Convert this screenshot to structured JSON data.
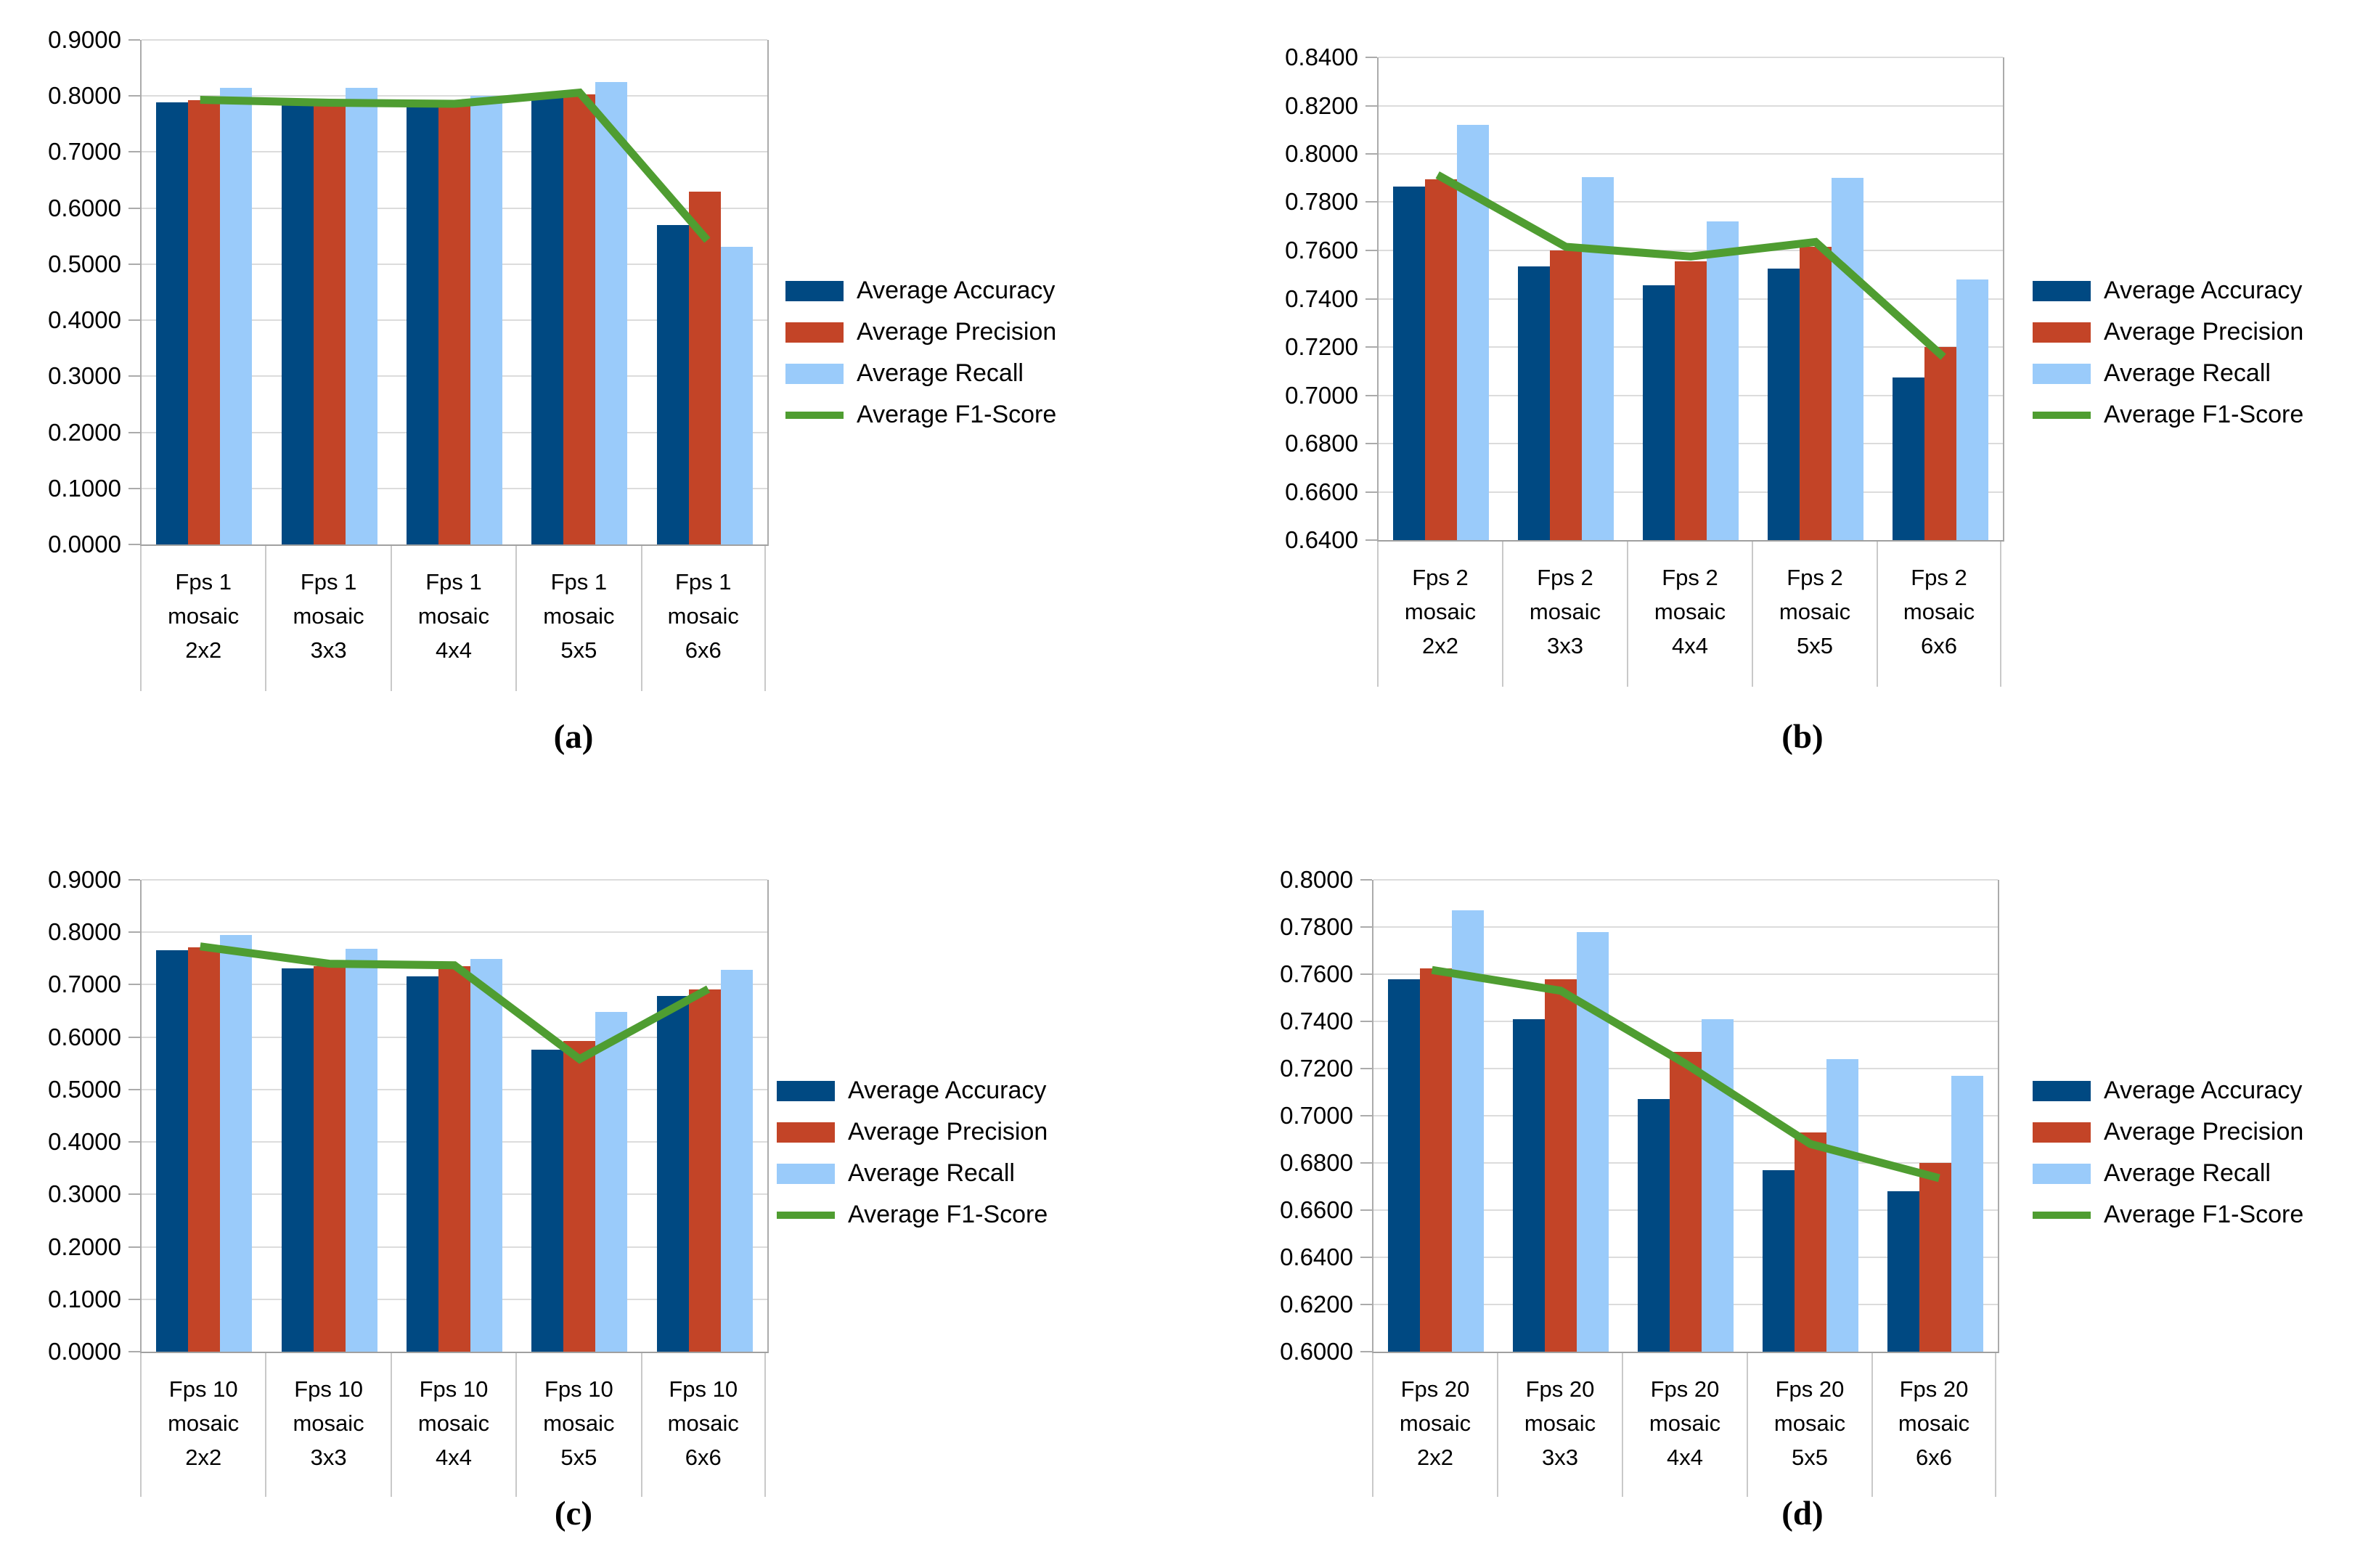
{
  "colors": {
    "accuracy": "#004982",
    "precision": "#c34427",
    "recall": "#9acbfa",
    "f1": "#4f9d31",
    "gridline": "#dcdcdc",
    "axis": "#ababab"
  },
  "legend": {
    "items": [
      {
        "key": "accuracy",
        "label": "Average Accuracy",
        "swatch": "bar"
      },
      {
        "key": "precision",
        "label": "Average Precision",
        "swatch": "bar"
      },
      {
        "key": "recall",
        "label": "Average Recall",
        "swatch": "bar"
      },
      {
        "key": "f1",
        "label": "Average F1-Score",
        "swatch": "line"
      }
    ]
  },
  "chart_data": [
    {
      "id": "a",
      "caption": "(a)",
      "type": "bar",
      "line_series": "Average F1-Score",
      "categories": [
        [
          "Fps 1",
          "mosaic",
          "2x2"
        ],
        [
          "Fps 1",
          "mosaic",
          "3x3"
        ],
        [
          "Fps 1",
          "mosaic",
          "4x4"
        ],
        [
          "Fps 1",
          "mosaic",
          "5x5"
        ],
        [
          "Fps 1",
          "mosaic",
          "6x6"
        ]
      ],
      "series": [
        {
          "name": "Average Accuracy",
          "type": "bar",
          "color_key": "accuracy",
          "values": [
            0.789,
            0.784,
            0.781,
            0.796,
            0.57
          ]
        },
        {
          "name": "Average Precision",
          "type": "bar",
          "color_key": "precision",
          "values": [
            0.792,
            0.784,
            0.783,
            0.803,
            0.63
          ]
        },
        {
          "name": "Average Recall",
          "type": "bar",
          "color_key": "recall",
          "values": [
            0.815,
            0.814,
            0.8,
            0.825,
            0.531
          ]
        },
        {
          "name": "Average F1-Score",
          "type": "line",
          "color_key": "f1",
          "values": [
            0.793,
            0.788,
            0.786,
            0.806,
            0.548
          ]
        }
      ],
      "ylim": [
        0.0,
        0.9
      ],
      "ytick_step": 0.1,
      "yticks": [
        "0.9000",
        "0.8000",
        "0.7000",
        "0.6000",
        "0.5000",
        "0.4000",
        "0.3000",
        "0.2000",
        "0.1000",
        "0.0000"
      ],
      "grid": true,
      "legend_position": "right"
    },
    {
      "id": "b",
      "caption": "(b)",
      "type": "bar",
      "line_series": "Average F1-Score",
      "categories": [
        [
          "Fps 2",
          "mosaic",
          "2x2"
        ],
        [
          "Fps 2",
          "mosaic",
          "3x3"
        ],
        [
          "Fps 2",
          "mosaic",
          "4x4"
        ],
        [
          "Fps 2",
          "mosaic",
          "5x5"
        ],
        [
          "Fps 2",
          "mosaic",
          "6x6"
        ]
      ],
      "series": [
        {
          "name": "Average Accuracy",
          "type": "bar",
          "color_key": "accuracy",
          "values": [
            0.7865,
            0.7535,
            0.7455,
            0.7525,
            0.7075
          ]
        },
        {
          "name": "Average Precision",
          "type": "bar",
          "color_key": "precision",
          "values": [
            0.7895,
            0.76,
            0.7555,
            0.7615,
            0.72
          ]
        },
        {
          "name": "Average Recall",
          "type": "bar",
          "color_key": "recall",
          "values": [
            0.812,
            0.7905,
            0.772,
            0.79,
            0.748
          ]
        },
        {
          "name": "Average F1-Score",
          "type": "line",
          "color_key": "f1",
          "values": [
            0.7905,
            0.7615,
            0.7575,
            0.7635,
            0.717
          ]
        }
      ],
      "ylim": [
        0.64,
        0.84
      ],
      "ytick_step": 0.02,
      "yticks": [
        "0.8400",
        "0.8200",
        "0.8000",
        "0.7800",
        "0.7600",
        "0.7400",
        "0.7200",
        "0.7000",
        "0.6800",
        "0.6600",
        "0.6400"
      ],
      "grid": true,
      "legend_position": "right"
    },
    {
      "id": "c",
      "caption": "(c)",
      "type": "bar",
      "line_series": "Average F1-Score",
      "categories": [
        [
          "Fps 10",
          "mosaic",
          "2x2"
        ],
        [
          "Fps 10",
          "mosaic",
          "3x3"
        ],
        [
          "Fps 10",
          "mosaic",
          "4x4"
        ],
        [
          "Fps 10",
          "mosaic",
          "5x5"
        ],
        [
          "Fps 10",
          "mosaic",
          "6x6"
        ]
      ],
      "series": [
        {
          "name": "Average Accuracy",
          "type": "bar",
          "color_key": "accuracy",
          "values": [
            0.766,
            0.731,
            0.716,
            0.576,
            0.679
          ]
        },
        {
          "name": "Average Precision",
          "type": "bar",
          "color_key": "precision",
          "values": [
            0.771,
            0.735,
            0.735,
            0.592,
            0.691
          ]
        },
        {
          "name": "Average Recall",
          "type": "bar",
          "color_key": "recall",
          "values": [
            0.795,
            0.769,
            0.749,
            0.648,
            0.728
          ]
        },
        {
          "name": "Average F1-Score",
          "type": "line",
          "color_key": "f1",
          "values": [
            0.772,
            0.74,
            0.737,
            0.558,
            0.688
          ]
        }
      ],
      "ylim": [
        0.0,
        0.9
      ],
      "ytick_step": 0.1,
      "yticks": [
        "0.9000",
        "0.8000",
        "0.7000",
        "0.6000",
        "0.5000",
        "0.4000",
        "0.3000",
        "0.2000",
        "0.1000",
        "0.0000"
      ],
      "grid": true,
      "legend_position": "right"
    },
    {
      "id": "d",
      "caption": "(d)",
      "type": "bar",
      "line_series": "Average F1-Score",
      "categories": [
        [
          "Fps 20",
          "mosaic",
          "2x2"
        ],
        [
          "Fps 20",
          "mosaic",
          "3x3"
        ],
        [
          "Fps 20",
          "mosaic",
          "4x4"
        ],
        [
          "Fps 20",
          "mosaic",
          "5x5"
        ],
        [
          "Fps 20",
          "mosaic",
          "6x6"
        ]
      ],
      "series": [
        {
          "name": "Average Accuracy",
          "type": "bar",
          "color_key": "accuracy",
          "values": [
            0.758,
            0.741,
            0.707,
            0.677,
            0.668
          ]
        },
        {
          "name": "Average Precision",
          "type": "bar",
          "color_key": "precision",
          "values": [
            0.7625,
            0.758,
            0.727,
            0.693,
            0.68
          ]
        },
        {
          "name": "Average Recall",
          "type": "bar",
          "color_key": "recall",
          "values": [
            0.787,
            0.778,
            0.741,
            0.724,
            0.717
          ]
        },
        {
          "name": "Average F1-Score",
          "type": "line",
          "color_key": "f1",
          "values": [
            0.7615,
            0.753,
            0.722,
            0.688,
            0.674
          ]
        }
      ],
      "ylim": [
        0.6,
        0.8
      ],
      "ytick_step": 0.02,
      "yticks": [
        "0.8000",
        "0.7800",
        "0.7600",
        "0.7400",
        "0.7200",
        "0.7000",
        "0.6800",
        "0.6600",
        "0.6400",
        "0.6200",
        "0.6000"
      ],
      "grid": true,
      "legend_position": "right"
    }
  ]
}
